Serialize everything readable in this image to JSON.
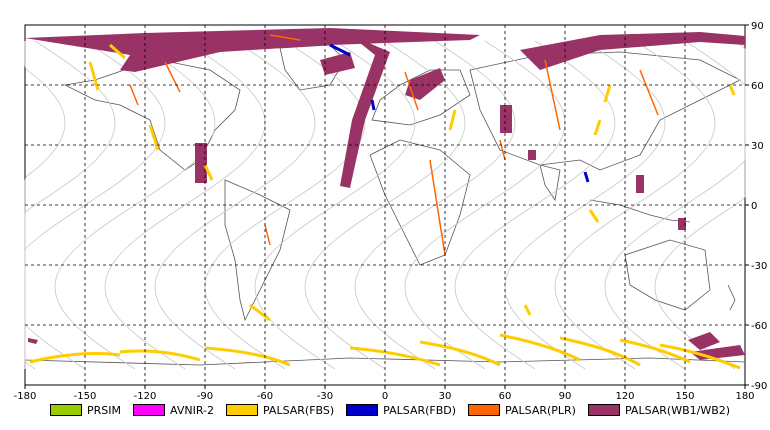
{
  "chart_data": {
    "type": "map",
    "xlim": [
      -180,
      180
    ],
    "ylim": [
      -90,
      90
    ],
    "x_ticks": [
      "-180",
      "-150",
      "-120",
      "-90",
      "-60",
      "-30",
      "0",
      "30",
      "60",
      "90",
      "120",
      "150",
      "180"
    ],
    "y_ticks": [
      "90",
      "60",
      "30",
      "0",
      "-30",
      "-60",
      "-90"
    ],
    "grid": true,
    "legend_position": "bottom",
    "legend": [
      {
        "label": "PRSIM",
        "color": "#99cc00"
      },
      {
        "label": "AVNIR-2",
        "color": "#ff00ff"
      },
      {
        "label": "PALSAR(FBS)",
        "color": "#ffcc00"
      },
      {
        "label": "PALSAR(FBD)",
        "color": "#0000cc"
      },
      {
        "label": "PALSAR(PLR)",
        "color": "#ff6600"
      },
      {
        "label": "PALSAR(WB1/WB2)",
        "color": "#993366"
      }
    ]
  }
}
